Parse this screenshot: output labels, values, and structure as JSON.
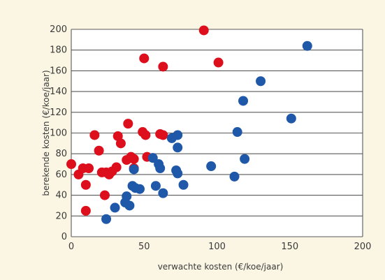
{
  "chart_data": {
    "type": "scatter",
    "title": "",
    "xlabel": "verwachte kosten (€/koe/jaar)",
    "ylabel": "berekende kosten (€/koe/jaar)",
    "xlim": [
      0,
      200
    ],
    "ylim": [
      0,
      200
    ],
    "x_ticks": [
      "0",
      "50",
      "100",
      "150",
      "200"
    ],
    "y_ticks": [
      "0",
      "20",
      "40",
      "60",
      "80",
      "100",
      "120",
      "140",
      "160",
      "180",
      "200"
    ],
    "grid": "horizontal",
    "series": [
      {
        "color": "#dd0f1c",
        "points": [
          [
            0,
            70
          ],
          [
            5,
            60
          ],
          [
            8,
            66
          ],
          [
            10,
            50
          ],
          [
            12,
            66
          ],
          [
            10,
            25
          ],
          [
            16,
            98
          ],
          [
            19,
            83
          ],
          [
            21,
            62
          ],
          [
            23,
            40
          ],
          [
            24,
            62
          ],
          [
            26,
            60
          ],
          [
            31,
            67
          ],
          [
            32,
            97
          ],
          [
            34,
            90
          ],
          [
            39,
            109
          ],
          [
            41,
            77
          ],
          [
            43,
            75
          ],
          [
            43,
            66
          ],
          [
            49,
            101
          ],
          [
            51,
            98
          ],
          [
            52,
            77
          ],
          [
            50,
            172
          ],
          [
            61,
            99
          ],
          [
            63,
            98
          ],
          [
            63,
            164
          ],
          [
            91,
            199
          ],
          [
            101,
            168
          ],
          [
            38,
            74
          ],
          [
            28,
            63
          ]
        ]
      },
      {
        "color": "#1f58a8",
        "points": [
          [
            24,
            17
          ],
          [
            30,
            28
          ],
          [
            37,
            33
          ],
          [
            38,
            39
          ],
          [
            40,
            30
          ],
          [
            42,
            49
          ],
          [
            43,
            65
          ],
          [
            44,
            47
          ],
          [
            47,
            46
          ],
          [
            56,
            76
          ],
          [
            58,
            49
          ],
          [
            60,
            70
          ],
          [
            61,
            66
          ],
          [
            63,
            42
          ],
          [
            69,
            95
          ],
          [
            73,
            98
          ],
          [
            73,
            86
          ],
          [
            73,
            61
          ],
          [
            77,
            50
          ],
          [
            96,
            68
          ],
          [
            112,
            58
          ],
          [
            114,
            101
          ],
          [
            118,
            131
          ],
          [
            119,
            75
          ],
          [
            130,
            150
          ],
          [
            151,
            114
          ],
          [
            162,
            184
          ],
          [
            72,
            64
          ]
        ]
      }
    ]
  }
}
